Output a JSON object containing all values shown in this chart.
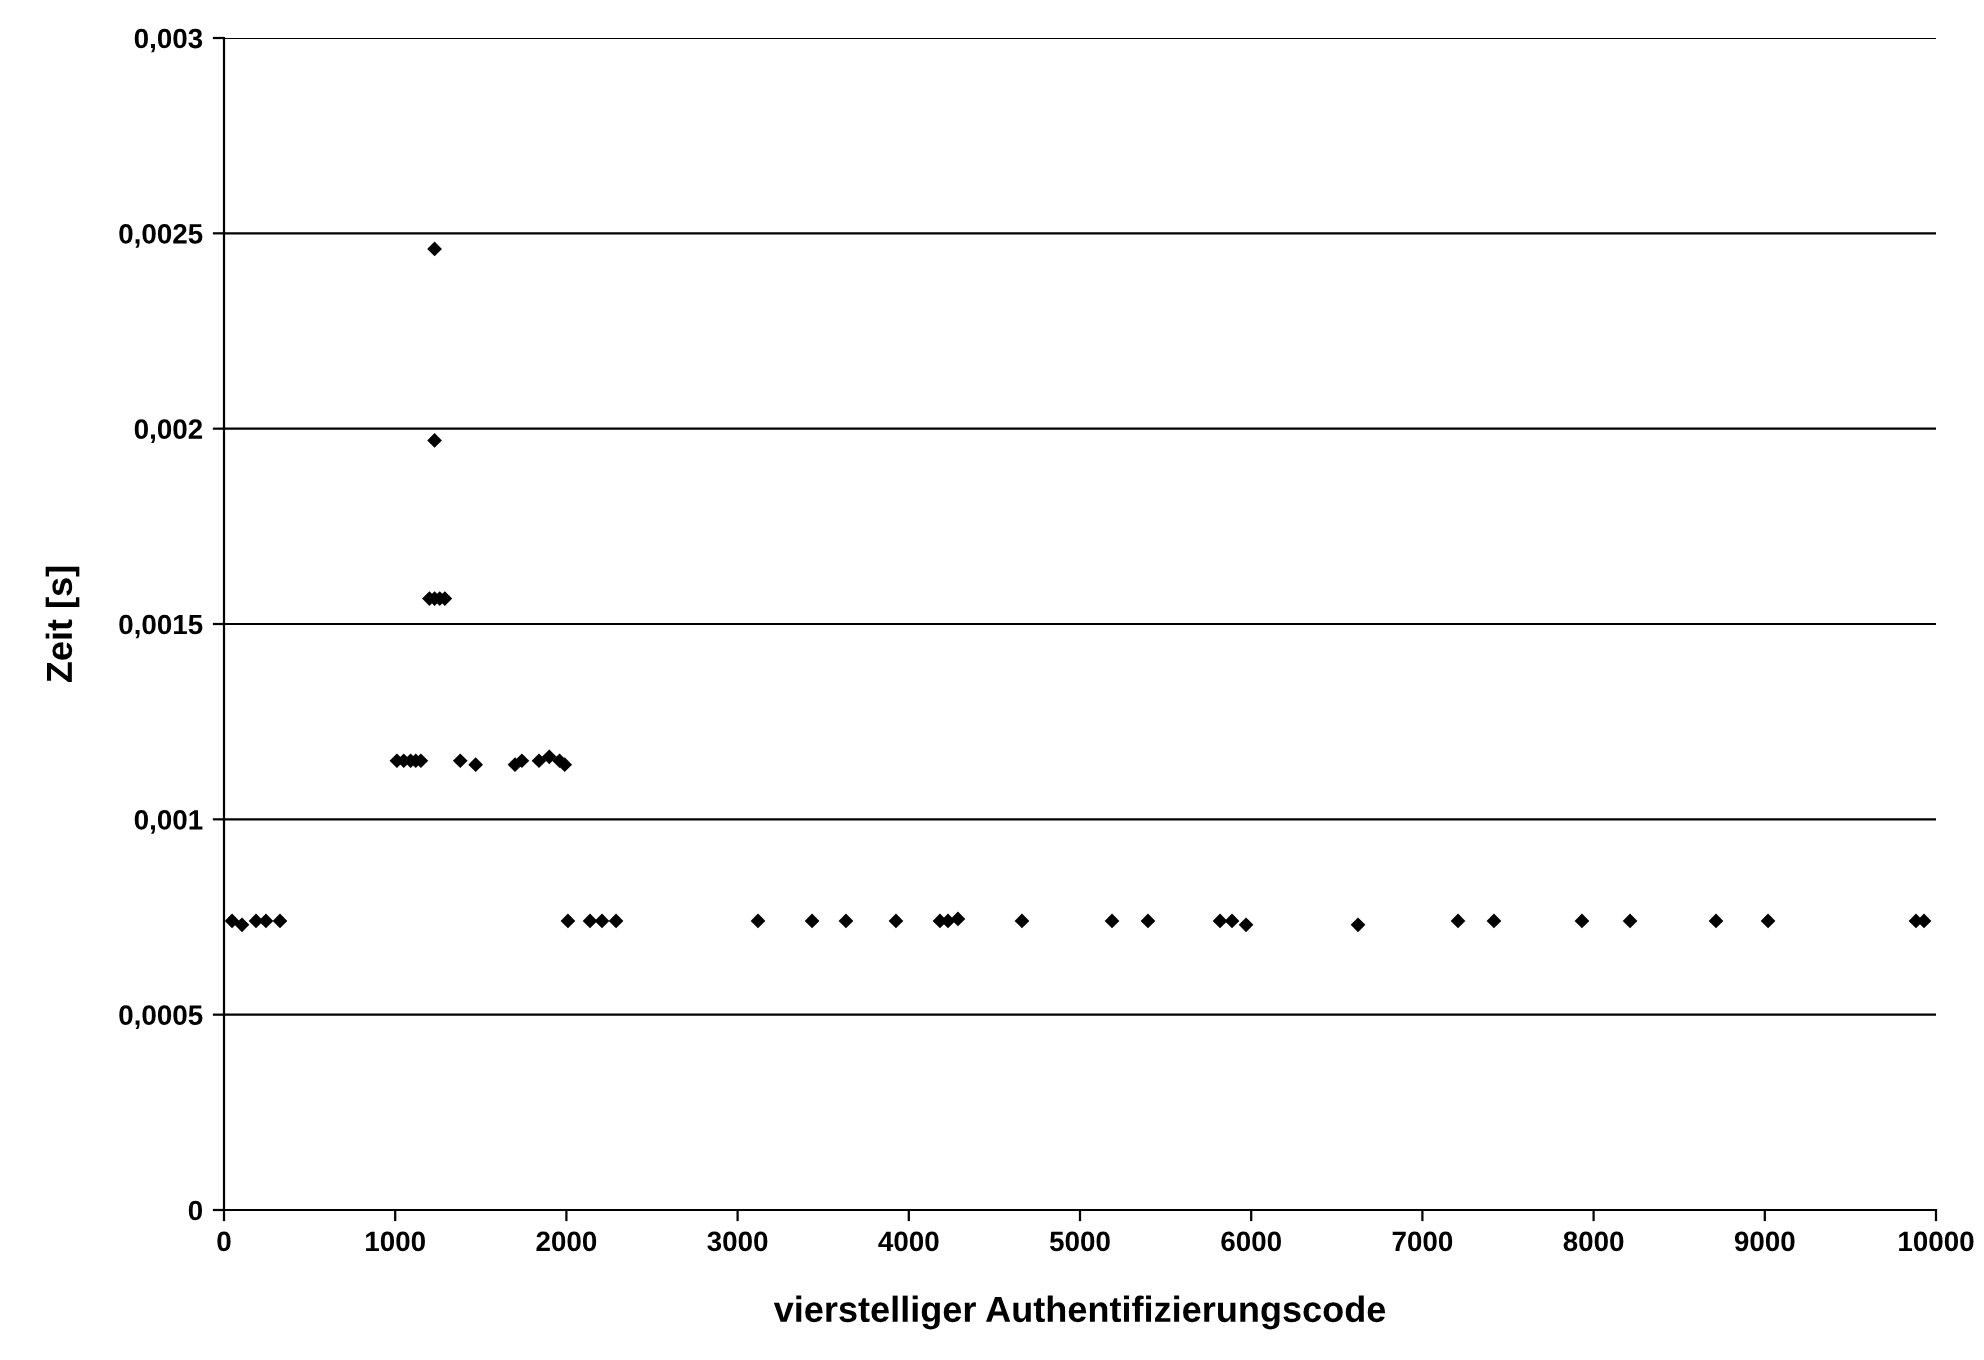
{
  "chart_data": {
    "type": "scatter",
    "xlabel": "vierstelliger Authentifizierungscode",
    "ylabel": "Zeit [s]",
    "xlim": [
      0,
      10000
    ],
    "xticks": [
      0,
      1000,
      2000,
      3000,
      4000,
      5000,
      6000,
      7000,
      8000,
      9000,
      10000
    ],
    "ylim": [
      0,
      0.003
    ],
    "yticks": [
      {
        "value": 0,
        "label": "0"
      },
      {
        "value": 0.0005,
        "label": "0,0005"
      },
      {
        "value": 0.001,
        "label": "0,001"
      },
      {
        "value": 0.0015,
        "label": "0,0015"
      },
      {
        "value": 0.002,
        "label": "0,002"
      },
      {
        "value": 0.0025,
        "label": "0,0025"
      },
      {
        "value": 0.003,
        "label": "0,003"
      }
    ],
    "grid": "y",
    "marker": "diamond",
    "legend": false,
    "series": [
      {
        "color": "#000000",
        "x": [
          47,
          105,
          187,
          245,
          327,
          1010,
          1050,
          1090,
          1120,
          1150,
          1380,
          1470,
          1700,
          1740,
          1840,
          1900,
          1960,
          1990,
          1200,
          1230,
          1260,
          1290,
          1230,
          1230,
          2009,
          2138,
          2208,
          2290,
          3119,
          3435,
          3633,
          3925,
          4182,
          4229,
          4287,
          4661,
          5187,
          5397,
          5818,
          5888,
          5970,
          6624,
          7208,
          7418,
          7932,
          8213,
          8715,
          9019,
          9883,
          9930
        ],
        "values": [
          0.00074,
          0.00073,
          0.00074,
          0.00074,
          0.00074,
          0.00115,
          0.00115,
          0.00115,
          0.00115,
          0.00115,
          0.00115,
          0.00114,
          0.00114,
          0.00115,
          0.00115,
          0.00116,
          0.00115,
          0.00114,
          0.001565,
          0.001565,
          0.001565,
          0.001565,
          0.00197,
          0.00246,
          0.00074,
          0.00074,
          0.00074,
          0.00074,
          0.00074,
          0.00074,
          0.00074,
          0.00074,
          0.00074,
          0.00074,
          0.000745,
          0.00074,
          0.00074,
          0.00074,
          0.00074,
          0.00074,
          0.00073,
          0.00073,
          0.00074,
          0.00074,
          0.00074,
          0.00074,
          0.00074,
          0.00074,
          0.00074,
          0.00074
        ]
      }
    ]
  }
}
